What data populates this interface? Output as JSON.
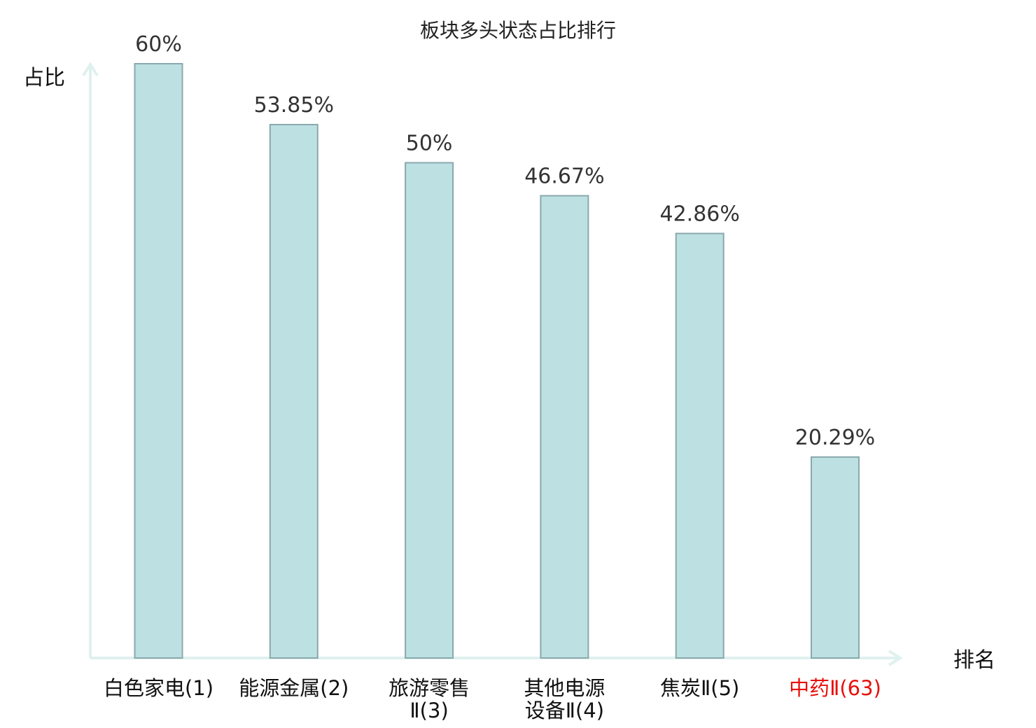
{
  "chart_data": {
    "type": "bar",
    "title": "板块多头状态占比排行",
    "ylabel": "占比",
    "xlabel": "排名",
    "ylim": [
      0,
      60
    ],
    "grid": false,
    "legend": "none",
    "categories": [
      [
        "白色家电(1)"
      ],
      [
        "能源金属(2)"
      ],
      [
        "旅游零售",
        "Ⅱ(3)"
      ],
      [
        "其他电源",
        "设备Ⅱ(4)"
      ],
      [
        "焦炭Ⅱ(5)"
      ],
      [
        "中药Ⅱ(63)"
      ]
    ],
    "values": [
      60,
      53.85,
      50,
      46.67,
      42.86,
      20.29
    ],
    "value_labels": [
      "60%",
      "53.85%",
      "50%",
      "46.67%",
      "42.86%",
      "20.29%"
    ],
    "highlight_index": 5,
    "colors": {
      "bar_fill": "#bde0e3",
      "bar_stroke": "#8aa9ac",
      "axis": "#dff1ee",
      "label": "#111111",
      "highlight": "#e8100c"
    }
  }
}
